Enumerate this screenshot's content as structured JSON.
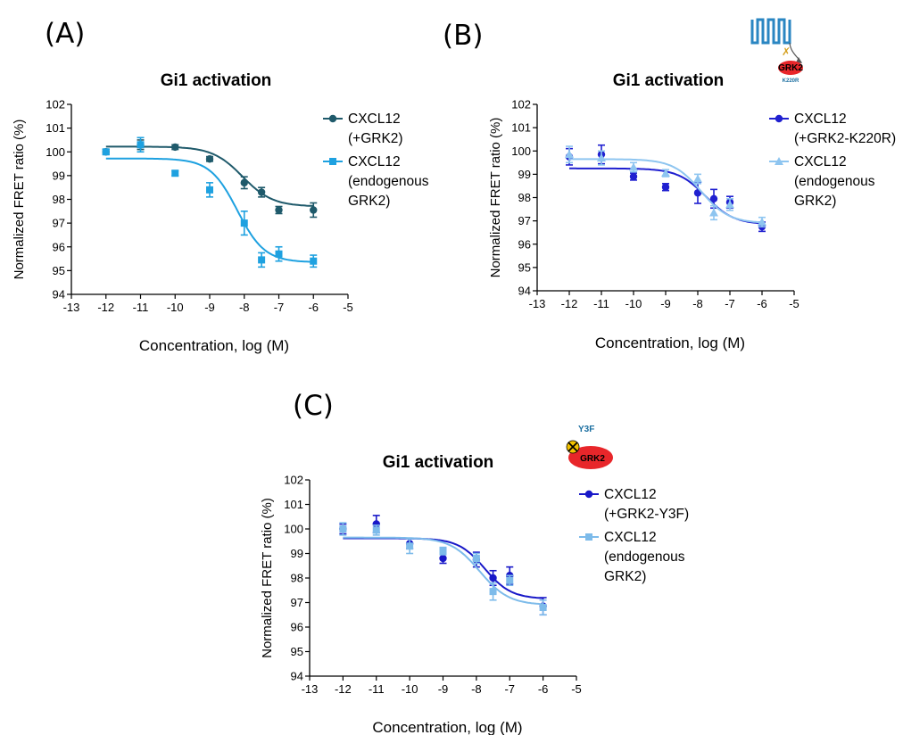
{
  "panels": [
    {
      "letter": "(A)",
      "chart_data": {
        "type": "scatter",
        "title": "Gi1 activation",
        "xlabel": "Concentration,  log (M)",
        "ylabel": "Normalized FRET ratio (%)",
        "xlim": [
          -13,
          -5
        ],
        "ylim": [
          94,
          102
        ],
        "xticks": [
          "-13",
          "-12",
          "-11",
          "-10",
          "-9",
          "-8",
          "-7",
          "-6",
          "-5"
        ],
        "yticks": [
          "94",
          "95",
          "96",
          "97",
          "98",
          "99",
          "100",
          "101",
          "102"
        ],
        "legend_position": "right",
        "series": [
          {
            "legend": [
              "CXCL12",
              "(+GRK2)"
            ],
            "color": "#1f5a6b",
            "marker": "circle",
            "x": [
              -12,
              -11,
              -10,
              -9,
              -8,
              -7.5,
              -7,
              -6
            ],
            "y": [
              100.0,
              100.3,
              100.2,
              99.7,
              98.7,
              98.3,
              97.55,
              97.55
            ],
            "err": [
              0.1,
              0.2,
              0.1,
              0.1,
              0.25,
              0.2,
              0.15,
              0.3
            ],
            "fit": {
              "top": 100.22,
              "bottom": 97.7,
              "logEC50": -8.05,
              "hill": 1.0
            }
          },
          {
            "legend": [
              "CXCL12",
              "(endogenous",
              "GRK2)"
            ],
            "color": "#1ea1e0",
            "marker": "square",
            "x": [
              -12,
              -11,
              -10,
              -9,
              -8,
              -7.5,
              -7,
              -6
            ],
            "y": [
              100.0,
              100.3,
              99.1,
              98.4,
              97.0,
              95.45,
              95.7,
              95.4
            ],
            "err": [
              0.1,
              0.3,
              0.1,
              0.3,
              0.5,
              0.3,
              0.3,
              0.25
            ],
            "fit": {
              "top": 99.72,
              "bottom": 95.35,
              "logEC50": -8.2,
              "hill": 1.1
            }
          }
        ]
      }
    },
    {
      "letter": "(B)",
      "chart_data": {
        "type": "scatter",
        "title": "Gi1 activation",
        "xlabel": "Concentration,  log (M)",
        "ylabel": "Normalized FRET ratio (%)",
        "xlim": [
          -13,
          -5
        ],
        "ylim": [
          94,
          102
        ],
        "xticks": [
          "-13",
          "-12",
          "-11",
          "-10",
          "-9",
          "-8",
          "-7",
          "-6",
          "-5"
        ],
        "yticks": [
          "94",
          "95",
          "96",
          "97",
          "98",
          "99",
          "100",
          "101",
          "102"
        ],
        "legend_position": "right",
        "series": [
          {
            "legend": [
              "CXCL12",
              "(+GRK2-K220R)"
            ],
            "color": "#2020d0",
            "marker": "circle",
            "x": [
              -12,
              -11,
              -10,
              -9,
              -8,
              -7.5,
              -7,
              -6
            ],
            "y": [
              99.75,
              99.85,
              98.9,
              98.45,
              98.2,
              97.95,
              97.8,
              96.75
            ],
            "err": [
              0.35,
              0.4,
              0.15,
              0.15,
              0.45,
              0.4,
              0.25,
              0.2
            ],
            "fit": {
              "top": 99.25,
              "bottom": 96.85,
              "logEC50": -7.75,
              "hill": 1.0
            }
          },
          {
            "legend": [
              "CXCL12",
              "(endogenous",
              "GRK2)"
            ],
            "color": "#8ec5f0",
            "marker": "triangle",
            "x": [
              -12,
              -11,
              -10,
              -9,
              -8,
              -7.5,
              -7,
              -6
            ],
            "y": [
              99.85,
              99.7,
              99.3,
              99.05,
              98.8,
              97.35,
              97.7,
              96.95
            ],
            "err": [
              0.35,
              0.3,
              0.2,
              0.15,
              0.2,
              0.3,
              0.25,
              0.2
            ],
            "fit": {
              "top": 99.65,
              "bottom": 96.9,
              "logEC50": -7.9,
              "hill": 1.0
            }
          }
        ]
      }
    },
    {
      "letter": "(C)",
      "chart_data": {
        "type": "scatter",
        "title": "Gi1 activation",
        "xlabel": "Concentration,  log (M)",
        "ylabel": "Normalized FRET ratio (%)",
        "xlim": [
          -13,
          -5
        ],
        "ylim": [
          94,
          102
        ],
        "xticks": [
          "-13",
          "-12",
          "-11",
          "-10",
          "-9",
          "-8",
          "-7",
          "-6",
          "-5"
        ],
        "yticks": [
          "94",
          "95",
          "96",
          "97",
          "98",
          "99",
          "100",
          "101",
          "102"
        ],
        "legend_position": "right",
        "series": [
          {
            "legend": [
              "CXCL12",
              "(+GRK2-Y3F)"
            ],
            "color": "#1818c8",
            "marker": "circle",
            "x": [
              -12,
              -11,
              -10,
              -9,
              -8,
              -7.5,
              -7,
              -6
            ],
            "y": [
              100.0,
              100.2,
              99.4,
              98.8,
              98.75,
              98.0,
              98.1,
              96.85
            ],
            "err": [
              0.2,
              0.35,
              0.2,
              0.2,
              0.3,
              0.3,
              0.35,
              0.35
            ],
            "fit": {
              "top": 99.62,
              "bottom": 97.15,
              "logEC50": -7.75,
              "hill": 1.1
            }
          },
          {
            "legend": [
              "CXCL12",
              "(endogenous",
              "GRK2)"
            ],
            "color": "#7dbbea",
            "marker": "square",
            "x": [
              -12,
              -11,
              -10,
              -9,
              -8,
              -7.5,
              -7,
              -6
            ],
            "y": [
              100.0,
              99.95,
              99.3,
              99.1,
              98.8,
              97.45,
              97.9,
              96.8
            ],
            "err": [
              0.25,
              0.2,
              0.3,
              0.15,
              0.2,
              0.35,
              0.2,
              0.3
            ],
            "fit": {
              "top": 99.65,
              "bottom": 96.9,
              "logEC50": -7.9,
              "hill": 1.0
            }
          }
        ]
      }
    }
  ],
  "icons": {
    "receptor_label": "GRK2",
    "receptor_mutation": "K220R",
    "mutant_top": "Y3F",
    "mutant_label": "GRK2",
    "grk_color": "#e8262a",
    "receptor_color": "#2a86c2"
  }
}
